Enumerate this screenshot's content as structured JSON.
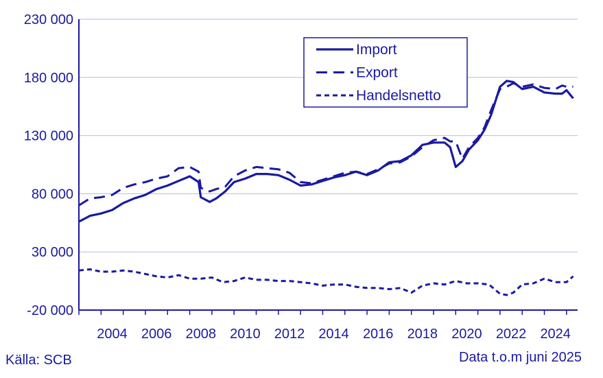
{
  "chart_data": {
    "type": "line",
    "title": "",
    "xlabel": "",
    "ylabel": "",
    "ylim": [
      -20000,
      230000
    ],
    "xlim": [
      2003.0,
      2025.5
    ],
    "y_ticks": [
      -20000,
      30000,
      80000,
      130000,
      180000,
      230000
    ],
    "y_tick_labels": [
      "-20 000",
      "30 000",
      "80 000",
      "130 000",
      "180 000",
      "230 000"
    ],
    "x_ticks": [
      2004,
      2006,
      2008,
      2010,
      2012,
      2014,
      2016,
      2018,
      2020,
      2022,
      2024
    ],
    "x_tick_labels": [
      "2004",
      "2006",
      "2008",
      "2010",
      "2012",
      "2014",
      "2016",
      "2018",
      "2020",
      "2022",
      "2024"
    ],
    "grid": "horizontal",
    "legend_position": "top-center",
    "series": [
      {
        "name": "Import",
        "style": "solid",
        "color": "#1a1aa0",
        "x": [
          2003.0,
          2003.5,
          2004.0,
          2004.5,
          2005.0,
          2005.5,
          2006.0,
          2006.5,
          2007.0,
          2007.5,
          2008.0,
          2008.4,
          2008.5,
          2008.9,
          2009.2,
          2009.6,
          2010.0,
          2010.5,
          2011.0,
          2011.5,
          2012.0,
          2012.5,
          2013.0,
          2013.5,
          2014.0,
          2014.5,
          2015.0,
          2015.5,
          2016.0,
          2016.5,
          2017.0,
          2017.5,
          2018.0,
          2018.5,
          2019.0,
          2019.5,
          2019.75,
          2020.0,
          2020.3,
          2020.6,
          2021.0,
          2021.3,
          2021.6,
          2022.0,
          2022.3,
          2022.6,
          2023.0,
          2023.5,
          2024.0,
          2024.5,
          2024.8,
          2025.0,
          2025.3
        ],
        "values": [
          56000,
          61000,
          63000,
          66000,
          72000,
          76000,
          79000,
          84000,
          87000,
          91000,
          95000,
          90000,
          77000,
          73000,
          76000,
          82000,
          90000,
          93000,
          97000,
          97000,
          96000,
          92000,
          87000,
          88000,
          91000,
          94000,
          96000,
          99000,
          96000,
          100000,
          107000,
          108000,
          113000,
          122000,
          124000,
          124000,
          120000,
          103000,
          108000,
          118000,
          126000,
          135000,
          148000,
          172000,
          177000,
          176000,
          170000,
          172000,
          167000,
          166000,
          166000,
          169000,
          162000
        ]
      },
      {
        "name": "Export",
        "style": "dashed",
        "color": "#1a1aa0",
        "x": [
          2003.0,
          2003.5,
          2004.0,
          2004.5,
          2005.0,
          2005.5,
          2006.0,
          2006.5,
          2007.0,
          2007.5,
          2008.0,
          2008.4,
          2008.5,
          2008.9,
          2009.2,
          2009.6,
          2010.0,
          2010.5,
          2011.0,
          2011.5,
          2012.0,
          2012.5,
          2013.0,
          2013.5,
          2014.0,
          2014.5,
          2015.0,
          2015.5,
          2016.0,
          2016.5,
          2017.0,
          2017.5,
          2018.0,
          2018.5,
          2019.0,
          2019.5,
          2019.75,
          2020.0,
          2020.3,
          2020.6,
          2021.0,
          2021.3,
          2021.6,
          2022.0,
          2022.3,
          2022.6,
          2023.0,
          2023.5,
          2024.0,
          2024.5,
          2024.8,
          2025.0,
          2025.3
        ],
        "values": [
          70000,
          76000,
          77000,
          79000,
          85000,
          88000,
          90000,
          93000,
          95000,
          102000,
          103000,
          99000,
          85000,
          82000,
          84000,
          86000,
          95000,
          100000,
          103000,
          102000,
          101000,
          98000,
          90000,
          89000,
          92000,
          95000,
          98000,
          99000,
          97000,
          101000,
          106000,
          107000,
          112000,
          120000,
          126000,
          128000,
          125000,
          125000,
          110000,
          120000,
          128000,
          137000,
          152000,
          170000,
          172000,
          175000,
          172000,
          174000,
          171000,
          170000,
          173000,
          172000,
          172000
        ]
      },
      {
        "name": "Handelsnetto",
        "style": "dotted",
        "color": "#1a1aa0",
        "x": [
          2003.0,
          2003.5,
          2004.0,
          2004.5,
          2005.0,
          2005.5,
          2006.0,
          2006.5,
          2007.0,
          2007.5,
          2008.0,
          2008.5,
          2009.0,
          2009.5,
          2010.0,
          2010.5,
          2011.0,
          2011.5,
          2012.0,
          2012.5,
          2013.0,
          2013.5,
          2014.0,
          2014.5,
          2015.0,
          2015.5,
          2016.0,
          2016.5,
          2017.0,
          2017.5,
          2018.0,
          2018.5,
          2019.0,
          2019.5,
          2020.0,
          2020.5,
          2021.0,
          2021.5,
          2022.0,
          2022.3,
          2022.6,
          2023.0,
          2023.5,
          2024.0,
          2024.5,
          2025.0,
          2025.3
        ],
        "values": [
          14000,
          15000,
          13000,
          13000,
          14000,
          13000,
          11000,
          9000,
          8000,
          10000,
          7000,
          7000,
          8000,
          4000,
          5000,
          8000,
          6000,
          6000,
          5000,
          5000,
          4000,
          3000,
          1000,
          2000,
          2000,
          0,
          -1000,
          -1000,
          -2000,
          -1000,
          -5000,
          1000,
          3000,
          2000,
          5000,
          3000,
          3000,
          2000,
          -6000,
          -7000,
          -5000,
          2000,
          3000,
          7000,
          4000,
          4000,
          9000
        ]
      }
    ]
  },
  "footer": {
    "source": "Källa: SCB",
    "data_note": "Data t.o.m juni 2025"
  }
}
